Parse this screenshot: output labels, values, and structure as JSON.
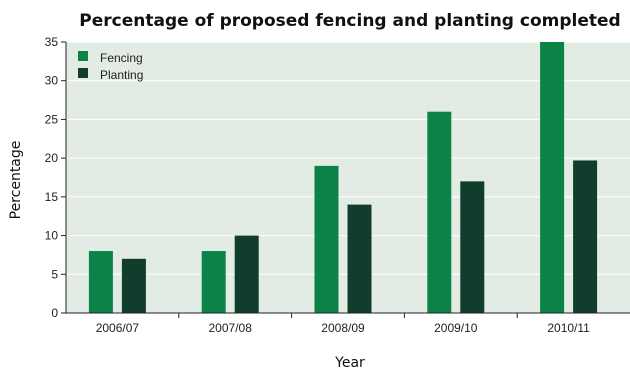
{
  "chart_data": {
    "type": "bar",
    "title": "Percentage of proposed fencing and planting completed",
    "xlabel": "Year",
    "ylabel": "Percentage",
    "categories": [
      "2006/07",
      "2007/08",
      "2008/09",
      "2009/10",
      "2010/11"
    ],
    "series": [
      {
        "name": "Fencing",
        "color": "#0b8346",
        "values": [
          8,
          8,
          19,
          26,
          35
        ]
      },
      {
        "name": "Planting",
        "color": "#113d2d",
        "values": [
          7,
          10,
          14,
          17,
          19.7
        ]
      }
    ],
    "ylim": [
      0,
      35
    ],
    "yticks": [
      0,
      5,
      10,
      15,
      20,
      25,
      30,
      35
    ],
    "grid": true,
    "legend": "top-left",
    "background": "#e3ebe5"
  }
}
